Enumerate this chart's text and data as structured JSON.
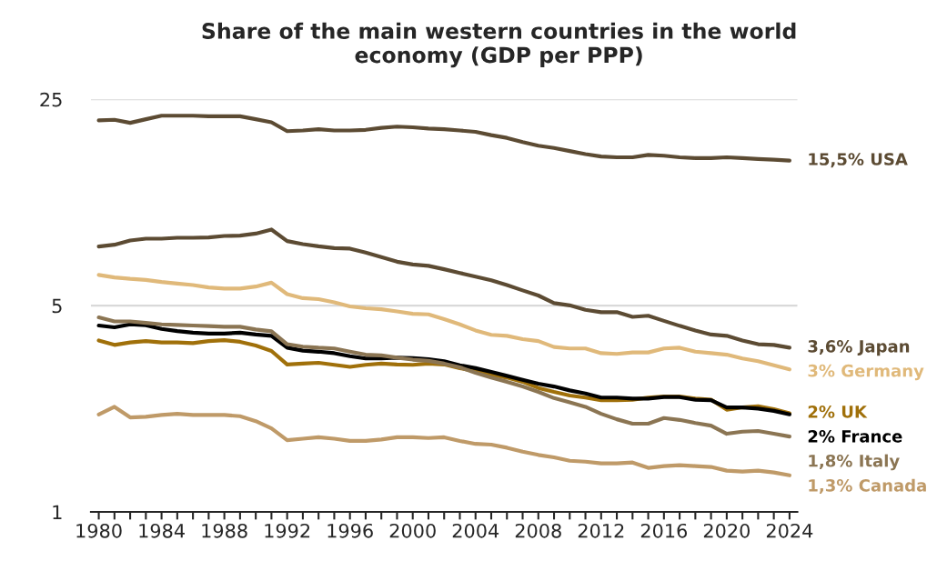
{
  "chart_data": {
    "type": "line",
    "title": "Share of the main western countries in the world\neconomy (GDP per PPP)",
    "x": [
      1980,
      1981,
      1982,
      1983,
      1984,
      1985,
      1986,
      1987,
      1988,
      1989,
      1990,
      1991,
      1992,
      1993,
      1994,
      1995,
      1996,
      1997,
      1998,
      1999,
      2000,
      2001,
      2002,
      2003,
      2004,
      2005,
      2006,
      2007,
      2008,
      2009,
      2010,
      2011,
      2012,
      2013,
      2014,
      2015,
      2016,
      2017,
      2018,
      2019,
      2020,
      2021,
      2022,
      2023,
      2024
    ],
    "series": [
      {
        "name": "15,5% USA",
        "color": "#5c4b33",
        "values": [
          21.2,
          21.3,
          20.8,
          21.4,
          22.0,
          22.0,
          22.0,
          21.9,
          21.9,
          21.9,
          21.4,
          20.9,
          19.5,
          19.6,
          19.8,
          19.6,
          19.6,
          19.7,
          20.0,
          20.2,
          20.1,
          19.9,
          19.8,
          19.6,
          19.4,
          18.9,
          18.5,
          17.9,
          17.4,
          17.1,
          16.7,
          16.3,
          16.0,
          15.9,
          15.9,
          16.2,
          16.1,
          15.9,
          15.8,
          15.8,
          15.9,
          15.8,
          15.7,
          15.6,
          15.5
        ]
      },
      {
        "name": "3,6% Japan",
        "color": "#5c4b33",
        "values": [
          7.93,
          8.04,
          8.31,
          8.43,
          8.43,
          8.49,
          8.49,
          8.51,
          8.61,
          8.63,
          8.77,
          9.05,
          8.27,
          8.08,
          7.94,
          7.83,
          7.8,
          7.56,
          7.3,
          7.04,
          6.89,
          6.82,
          6.64,
          6.45,
          6.27,
          6.09,
          5.87,
          5.63,
          5.41,
          5.1,
          5.01,
          4.84,
          4.75,
          4.75,
          4.58,
          4.62,
          4.44,
          4.27,
          4.12,
          3.99,
          3.95,
          3.81,
          3.7,
          3.68,
          3.6
        ]
      },
      {
        "name": "3% Germany",
        "color": "#e0b97a",
        "values": [
          6.35,
          6.23,
          6.16,
          6.11,
          6.01,
          5.94,
          5.87,
          5.76,
          5.71,
          5.71,
          5.8,
          5.98,
          5.47,
          5.3,
          5.26,
          5.13,
          4.97,
          4.9,
          4.86,
          4.78,
          4.69,
          4.67,
          4.5,
          4.32,
          4.12,
          3.98,
          3.95,
          3.85,
          3.79,
          3.62,
          3.58,
          3.58,
          3.45,
          3.43,
          3.47,
          3.47,
          3.58,
          3.6,
          3.49,
          3.45,
          3.41,
          3.31,
          3.24,
          3.14,
          3.04
        ]
      },
      {
        "name": "2% UK",
        "color": "#a0700a",
        "values": [
          3.81,
          3.68,
          3.75,
          3.79,
          3.75,
          3.75,
          3.73,
          3.79,
          3.82,
          3.77,
          3.66,
          3.51,
          3.16,
          3.18,
          3.2,
          3.15,
          3.1,
          3.15,
          3.18,
          3.16,
          3.15,
          3.18,
          3.16,
          3.07,
          3.0,
          2.92,
          2.85,
          2.76,
          2.63,
          2.55,
          2.48,
          2.44,
          2.39,
          2.39,
          2.4,
          2.44,
          2.46,
          2.46,
          2.42,
          2.4,
          2.22,
          2.26,
          2.28,
          2.23,
          2.16
        ]
      },
      {
        "name": "2% France",
        "color": "#000000",
        "values": [
          4.28,
          4.22,
          4.32,
          4.29,
          4.17,
          4.1,
          4.05,
          4.02,
          4.02,
          4.05,
          3.99,
          3.95,
          3.6,
          3.52,
          3.49,
          3.45,
          3.37,
          3.31,
          3.31,
          3.33,
          3.32,
          3.29,
          3.24,
          3.14,
          3.07,
          2.98,
          2.89,
          2.8,
          2.72,
          2.66,
          2.58,
          2.52,
          2.44,
          2.44,
          2.42,
          2.42,
          2.45,
          2.45,
          2.4,
          2.39,
          2.26,
          2.26,
          2.24,
          2.2,
          2.14
        ]
      },
      {
        "name": "1,8% Italy",
        "color": "#8b7553",
        "values": [
          4.56,
          4.42,
          4.42,
          4.37,
          4.32,
          4.3,
          4.28,
          4.26,
          4.24,
          4.24,
          4.15,
          4.09,
          3.7,
          3.63,
          3.6,
          3.58,
          3.49,
          3.41,
          3.39,
          3.33,
          3.28,
          3.25,
          3.18,
          3.09,
          2.96,
          2.85,
          2.76,
          2.66,
          2.55,
          2.43,
          2.35,
          2.27,
          2.15,
          2.06,
          1.99,
          1.99,
          2.08,
          2.05,
          2.0,
          1.96,
          1.84,
          1.87,
          1.88,
          1.84,
          1.8
        ]
      },
      {
        "name": "1,3% Canada",
        "color": "#bf9a68",
        "values": [
          2.14,
          2.27,
          2.09,
          2.1,
          2.13,
          2.15,
          2.13,
          2.13,
          2.13,
          2.11,
          2.03,
          1.92,
          1.75,
          1.77,
          1.79,
          1.77,
          1.74,
          1.74,
          1.76,
          1.79,
          1.79,
          1.78,
          1.79,
          1.74,
          1.7,
          1.69,
          1.65,
          1.6,
          1.56,
          1.53,
          1.49,
          1.48,
          1.46,
          1.46,
          1.47,
          1.41,
          1.43,
          1.44,
          1.43,
          1.42,
          1.38,
          1.37,
          1.38,
          1.36,
          1.33
        ]
      }
    ],
    "log": true,
    "ylim": [
      1,
      25
    ],
    "yticks": [
      1,
      5,
      25
    ],
    "xlim": [
      1979.5,
      2024.5
    ],
    "xticks": [
      1980,
      {
        "value": 1981,
        "label": null
      },
      {
        "value": 1982,
        "label": null
      },
      {
        "value": 1983,
        "label": null
      },
      1984,
      {
        "value": 1985,
        "label": null
      },
      {
        "value": 1986,
        "label": null
      },
      {
        "value": 1987,
        "label": null
      },
      1988,
      {
        "value": 1989,
        "label": null
      },
      {
        "value": 1990,
        "label": null
      },
      {
        "value": 1991,
        "label": null
      },
      1992,
      {
        "value": 1993,
        "label": null
      },
      {
        "value": 1994,
        "label": null
      },
      {
        "value": 1995,
        "label": null
      },
      1996,
      {
        "value": 1997,
        "label": null
      },
      {
        "value": 1998,
        "label": null
      },
      {
        "value": 1999,
        "label": null
      },
      2000,
      {
        "value": 2001,
        "label": null
      },
      {
        "value": 2002,
        "label": null
      },
      {
        "value": 2003,
        "label": null
      },
      2004,
      {
        "value": 2005,
        "label": null
      },
      {
        "value": 2006,
        "label": null
      },
      {
        "value": 2007,
        "label": null
      },
      2008,
      {
        "value": 2009,
        "label": null
      },
      {
        "value": 2010,
        "label": null
      },
      {
        "value": 2011,
        "label": null
      },
      2012,
      {
        "value": 2013,
        "label": null
      },
      {
        "value": 2014,
        "label": null
      },
      {
        "value": 2015,
        "label": null
      },
      2016,
      {
        "value": 2017,
        "label": null
      },
      {
        "value": 2018,
        "label": null
      },
      {
        "value": 2019,
        "label": null
      },
      2020,
      {
        "value": 2021,
        "label": null
      },
      {
        "value": 2022,
        "label": null
      },
      {
        "value": 2023,
        "label": null
      },
      2024
    ],
    "grid": "y",
    "marker": "none",
    "line_style": "solid"
  }
}
